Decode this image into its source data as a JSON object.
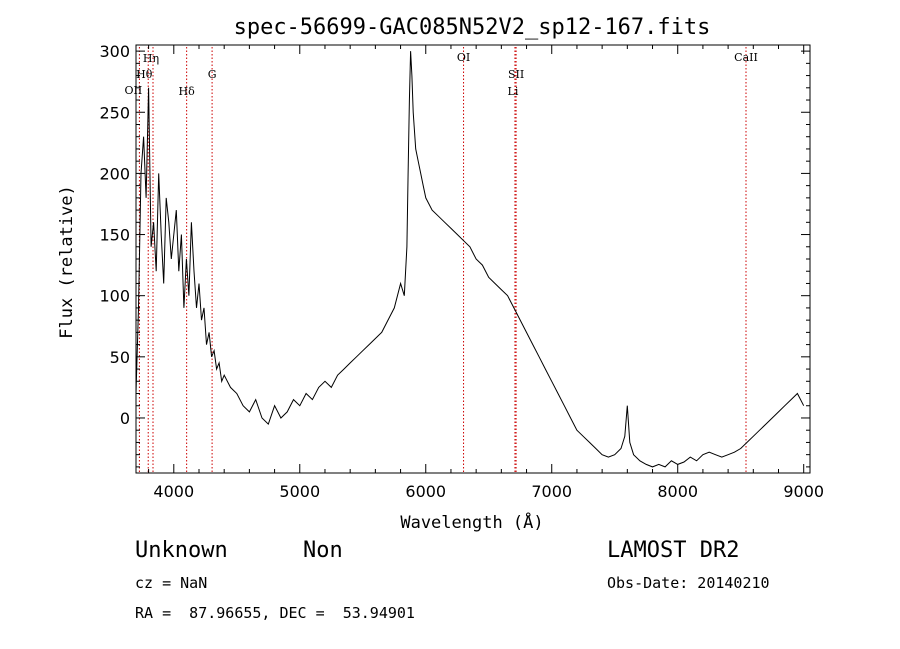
{
  "chart_data": {
    "type": "line",
    "title": "spec-56699-GAC085N52V2_sp12-167.fits",
    "xlabel": "Wavelength (Å)",
    "ylabel": "Flux (relative)",
    "xlim": [
      3700,
      9050
    ],
    "ylim": [
      -45,
      305
    ],
    "xticks": [
      4000,
      5000,
      6000,
      7000,
      8000,
      9000
    ],
    "yticks": [
      0,
      50,
      100,
      150,
      200,
      250,
      300
    ],
    "grid": false,
    "line_color": "#000000",
    "marker_color": "#cc0000",
    "line_markers": [
      {
        "label": "OII",
        "wavelength": 3727
      },
      {
        "label": "Hη",
        "wavelength": 3835
      },
      {
        "label": "Hθ",
        "wavelength": 3797
      },
      {
        "label": "Hδ",
        "wavelength": 4102
      },
      {
        "label": "G",
        "wavelength": 4304
      },
      {
        "label": "OI",
        "wavelength": 6300
      },
      {
        "label": "SII",
        "wavelength": 6717
      },
      {
        "label": "Li",
        "wavelength": 6708
      },
      {
        "label": "CaII",
        "wavelength": 8542
      }
    ],
    "series": [
      {
        "x": [
          3700,
          3720,
          3740,
          3760,
          3780,
          3800,
          3820,
          3840,
          3860,
          3880,
          3900,
          3920,
          3940,
          3960,
          3980,
          4000,
          4020,
          4040,
          4060,
          4080,
          4100,
          4120,
          4140,
          4160,
          4180,
          4200,
          4220,
          4240,
          4260,
          4280,
          4300,
          4320,
          4340,
          4360,
          4380,
          4400,
          4450,
          4500,
          4550,
          4600,
          4650,
          4700,
          4750,
          4800,
          4850,
          4900,
          4950,
          5000,
          5050,
          5100,
          5150,
          5200,
          5250,
          5300,
          5350,
          5400,
          5450,
          5500,
          5550,
          5600,
          5650,
          5700,
          5750,
          5800,
          5830,
          5850,
          5860,
          5870,
          5880,
          5890,
          5900,
          5920,
          5940,
          5960,
          5980,
          6000,
          6050,
          6100,
          6150,
          6200,
          6250,
          6300,
          6350,
          6400,
          6450,
          6500,
          6550,
          6600,
          6650,
          6700,
          6750,
          6800,
          6850,
          6900,
          6950,
          7000,
          7050,
          7100,
          7150,
          7200,
          7250,
          7300,
          7350,
          7400,
          7450,
          7500,
          7550,
          7580,
          7600,
          7620,
          7650,
          7700,
          7750,
          7800,
          7850,
          7900,
          7950,
          8000,
          8050,
          8100,
          8150,
          8200,
          8250,
          8300,
          8350,
          8400,
          8450,
          8500,
          8550,
          8600,
          8650,
          8700,
          8750,
          8800,
          8850,
          8900,
          8950,
          9000
        ],
        "y": [
          20,
          90,
          200,
          230,
          180,
          270,
          140,
          160,
          120,
          200,
          150,
          110,
          180,
          160,
          130,
          150,
          170,
          120,
          150,
          90,
          130,
          100,
          160,
          120,
          90,
          110,
          80,
          90,
          60,
          70,
          50,
          55,
          40,
          45,
          30,
          35,
          25,
          20,
          10,
          5,
          15,
          0,
          -5,
          10,
          0,
          5,
          15,
          10,
          20,
          15,
          25,
          30,
          25,
          35,
          40,
          45,
          50,
          55,
          60,
          65,
          70,
          80,
          90,
          110,
          100,
          140,
          200,
          260,
          300,
          280,
          250,
          220,
          210,
          200,
          190,
          180,
          170,
          165,
          160,
          155,
          150,
          145,
          140,
          130,
          125,
          115,
          110,
          105,
          100,
          90,
          80,
          70,
          60,
          50,
          40,
          30,
          20,
          10,
          0,
          -10,
          -15,
          -20,
          -25,
          -30,
          -32,
          -30,
          -25,
          -15,
          10,
          -20,
          -30,
          -35,
          -38,
          -40,
          -38,
          -40,
          -35,
          -38,
          -36,
          -32,
          -35,
          -30,
          -28,
          -30,
          -32,
          -30,
          -28,
          -25,
          -20,
          -15,
          -10,
          -5,
          0,
          5,
          10,
          15,
          20,
          10
        ]
      }
    ]
  },
  "annotations": {
    "object_class": "Unknown",
    "subclass": "Non",
    "survey": "LAMOST DR2",
    "redshift": "cz = NaN",
    "obs_date": "Obs-Date: 20140210",
    "coordinates": "RA =  87.96655, DEC =  53.94901"
  }
}
